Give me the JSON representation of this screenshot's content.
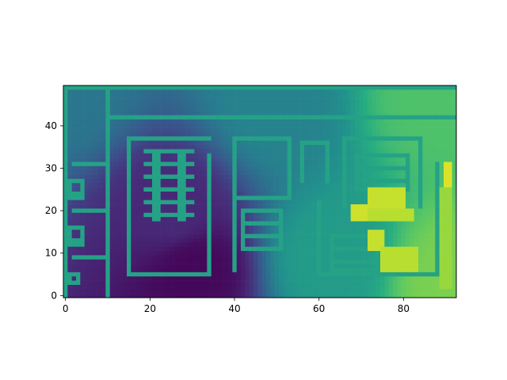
{
  "chart_data": {
    "type": "heatmap",
    "title": "",
    "xlabel": "",
    "ylabel": "",
    "colormap": "viridis",
    "grid": false,
    "xlim": [
      -0.5,
      92.5
    ],
    "ylim": [
      49.5,
      -0.5
    ],
    "x_ticks": [
      0,
      20,
      40,
      60,
      80
    ],
    "y_ticks": [
      0,
      10,
      20,
      30,
      40
    ],
    "columns": 93,
    "rows": 50,
    "value_range": [
      0,
      1
    ],
    "background_gradient": [
      {
        "x": 0,
        "y": 0,
        "value": 0.4
      },
      {
        "x": 25,
        "y": 30,
        "value": 0.12
      },
      {
        "x": 30,
        "y": 43,
        "value": 0.02
      },
      {
        "x": 50,
        "y": 5,
        "value": 0.45
      },
      {
        "x": 62,
        "y": 40,
        "value": 0.55
      },
      {
        "x": 88,
        "y": 3,
        "value": 0.72
      },
      {
        "x": 92,
        "y": 45,
        "value": 0.8
      }
    ],
    "structures": [
      {
        "kind": "wall",
        "value": 0.58,
        "x0": 0,
        "x1": 92,
        "y0": 0,
        "y1": 0
      },
      {
        "kind": "wall",
        "value": 0.58,
        "x0": 0,
        "x1": 0,
        "y0": 0,
        "y1": 49
      },
      {
        "kind": "wall",
        "value": 0.58,
        "x0": 10,
        "x1": 10,
        "y0": 0,
        "y1": 49
      },
      {
        "kind": "wall",
        "value": 0.58,
        "x0": 10,
        "x1": 92,
        "y0": 7,
        "y1": 7
      },
      {
        "kind": "wall",
        "value": 0.58,
        "x0": 2,
        "x1": 9,
        "y0": 18,
        "y1": 18
      },
      {
        "kind": "wall",
        "value": 0.58,
        "x0": 2,
        "x1": 9,
        "y0": 29,
        "y1": 29
      },
      {
        "kind": "wall",
        "value": 0.58,
        "x0": 2,
        "x1": 9,
        "y0": 40,
        "y1": 40
      },
      {
        "kind": "wall",
        "value": 0.58,
        "x0": 15,
        "x1": 34,
        "y0": 12,
        "y1": 12
      },
      {
        "kind": "wall",
        "value": 0.58,
        "x0": 15,
        "x1": 15,
        "y0": 12,
        "y1": 44
      },
      {
        "kind": "wall",
        "value": 0.58,
        "x0": 15,
        "x1": 34,
        "y0": 44,
        "y1": 44
      },
      {
        "kind": "wall",
        "value": 0.58,
        "x0": 34,
        "x1": 34,
        "y0": 16,
        "y1": 44
      },
      {
        "kind": "wall",
        "value": 0.58,
        "x0": 40,
        "x1": 53,
        "y0": 12,
        "y1": 12
      },
      {
        "kind": "wall",
        "value": 0.58,
        "x0": 40,
        "x1": 40,
        "y0": 12,
        "y1": 43
      },
      {
        "kind": "wall",
        "value": 0.58,
        "x0": 40,
        "x1": 53,
        "y0": 26,
        "y1": 26
      },
      {
        "kind": "wall",
        "value": 0.58,
        "x0": 53,
        "x1": 53,
        "y0": 12,
        "y1": 26
      },
      {
        "kind": "wall",
        "value": 0.58,
        "x0": 56,
        "x1": 62,
        "y0": 13,
        "y1": 13
      },
      {
        "kind": "wall",
        "value": 0.58,
        "x0": 56,
        "x1": 56,
        "y0": 13,
        "y1": 22
      },
      {
        "kind": "wall",
        "value": 0.58,
        "x0": 62,
        "x1": 62,
        "y0": 13,
        "y1": 22
      },
      {
        "kind": "wall",
        "value": 0.58,
        "x0": 66,
        "x1": 84,
        "y0": 12,
        "y1": 12
      },
      {
        "kind": "wall",
        "value": 0.58,
        "x0": 66,
        "x1": 66,
        "y0": 12,
        "y1": 28
      },
      {
        "kind": "wall",
        "value": 0.58,
        "x0": 84,
        "x1": 84,
        "y0": 12,
        "y1": 28
      },
      {
        "kind": "wall",
        "value": 0.58,
        "x0": 60,
        "x1": 60,
        "y0": 27,
        "y1": 44
      },
      {
        "kind": "wall",
        "value": 0.58,
        "x0": 60,
        "x1": 88,
        "y0": 44,
        "y1": 44
      },
      {
        "kind": "wall",
        "value": 0.58,
        "x0": 88,
        "x1": 88,
        "y0": 18,
        "y1": 44
      },
      {
        "kind": "block",
        "value": 0.58,
        "x0": 1,
        "x1": 4,
        "y0": 22,
        "y1": 26
      },
      {
        "kind": "block",
        "value": 0.58,
        "x0": 1,
        "x1": 4,
        "y0": 33,
        "y1": 37
      },
      {
        "kind": "block",
        "value": 0.58,
        "x0": 1,
        "x1": 3,
        "y0": 44,
        "y1": 46
      },
      {
        "kind": "block",
        "value": 0.58,
        "x0": 42,
        "x1": 51,
        "y0": 29,
        "y1": 38
      },
      {
        "kind": "block",
        "value": 0.58,
        "x0": 69,
        "x1": 81,
        "y0": 16,
        "y1": 24
      },
      {
        "kind": "block",
        "value": 0.58,
        "x0": 63,
        "x1": 74,
        "y0": 35,
        "y1": 43
      },
      {
        "kind": "ladder",
        "value": 0.58,
        "x0": 21,
        "x1": 22,
        "y0": 15,
        "y1": 31
      },
      {
        "kind": "ladder",
        "value": 0.58,
        "x0": 27,
        "x1": 28,
        "y0": 15,
        "y1": 31
      },
      {
        "kind": "hot",
        "value": 0.95,
        "x0": 90,
        "x1": 91,
        "y0": 18,
        "y1": 24
      },
      {
        "kind": "hot",
        "value": 0.93,
        "x0": 68,
        "x1": 71,
        "y0": 28,
        "y1": 31
      },
      {
        "kind": "hot",
        "value": 0.92,
        "x0": 72,
        "x1": 80,
        "y0": 24,
        "y1": 29
      },
      {
        "kind": "hot",
        "value": 0.9,
        "x0": 72,
        "x1": 82,
        "y0": 29,
        "y1": 31
      },
      {
        "kind": "hot",
        "value": 0.92,
        "x0": 72,
        "x1": 75,
        "y0": 34,
        "y1": 38
      },
      {
        "kind": "hot",
        "value": 0.9,
        "x0": 75,
        "x1": 83,
        "y0": 38,
        "y1": 43
      },
      {
        "kind": "hot",
        "value": 0.85,
        "x0": 89,
        "x1": 91,
        "y0": 24,
        "y1": 47
      }
    ]
  }
}
